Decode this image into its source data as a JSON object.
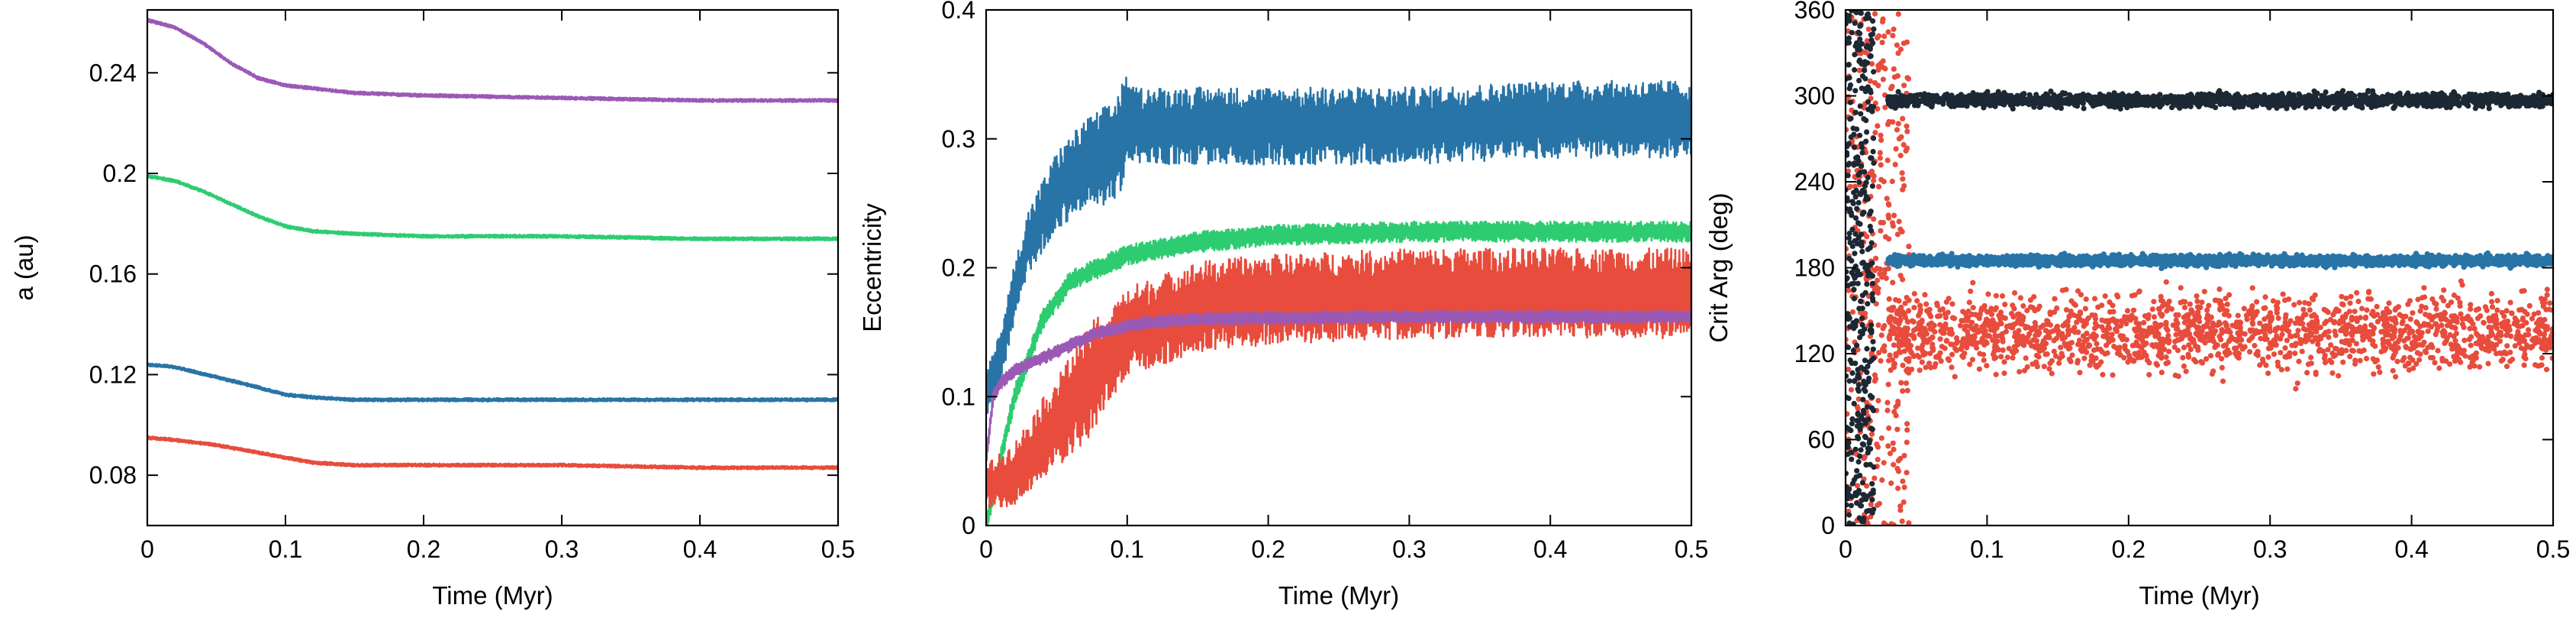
{
  "chart_data": [
    {
      "type": "line",
      "xlabel": "Time (Myr)",
      "ylabel": "a (au)",
      "xlim": [
        0,
        0.5
      ],
      "ylim": [
        0.06,
        0.265
      ],
      "xticks": [
        0,
        0.1,
        0.2,
        0.3,
        0.4,
        0.5
      ],
      "xtick_labels": [
        "0",
        "0.1",
        "0.2",
        "0.3",
        "0.4",
        "0.5"
      ],
      "yticks": [
        0.08,
        0.12,
        0.16,
        0.2,
        0.24
      ],
      "ytick_labels": [
        "0.08",
        "0.12",
        "0.16",
        "0.2",
        "0.24"
      ],
      "grid": false,
      "series": [
        {
          "color": "#9b59b6",
          "x": [
            0,
            0.02,
            0.04,
            0.06,
            0.08,
            0.1,
            0.15,
            0.2,
            0.3,
            0.4,
            0.5
          ],
          "values": [
            0.261,
            0.258,
            0.252,
            0.244,
            0.238,
            0.235,
            0.232,
            0.231,
            0.23,
            0.229,
            0.229
          ],
          "noise": 0.0007
        },
        {
          "color": "#2ecc71",
          "x": [
            0,
            0.02,
            0.04,
            0.06,
            0.08,
            0.1,
            0.12,
            0.15,
            0.2,
            0.3,
            0.4,
            0.5
          ],
          "values": [
            0.199,
            0.197,
            0.193,
            0.188,
            0.183,
            0.179,
            0.177,
            0.176,
            0.175,
            0.175,
            0.174,
            0.174
          ],
          "noise": 0.0007
        },
        {
          "color": "#2874a6",
          "x": [
            0,
            0.02,
            0.05,
            0.08,
            0.1,
            0.12,
            0.15,
            0.2,
            0.3,
            0.4,
            0.5
          ],
          "values": [
            0.124,
            0.123,
            0.119,
            0.115,
            0.112,
            0.111,
            0.11,
            0.11,
            0.11,
            0.11,
            0.11
          ],
          "noise": 0.0007
        },
        {
          "color": "#e74c3c",
          "x": [
            0,
            0.02,
            0.05,
            0.08,
            0.1,
            0.12,
            0.15,
            0.2,
            0.3,
            0.4,
            0.5
          ],
          "values": [
            0.095,
            0.094,
            0.092,
            0.089,
            0.087,
            0.085,
            0.084,
            0.084,
            0.084,
            0.083,
            0.083
          ],
          "noise": 0.0007
        }
      ]
    },
    {
      "type": "line",
      "xlabel": "Time (Myr)",
      "ylabel": "Eccentricity",
      "xlim": [
        0,
        0.5
      ],
      "ylim": [
        0,
        0.4
      ],
      "xticks": [
        0,
        0.1,
        0.2,
        0.3,
        0.4,
        0.5
      ],
      "xtick_labels": [
        "0",
        "0.1",
        "0.2",
        "0.3",
        "0.4",
        "0.5"
      ],
      "yticks": [
        0,
        0.1,
        0.2,
        0.3,
        0.4
      ],
      "ytick_labels": [
        "0",
        "0.1",
        "0.2",
        "0.3",
        "0.4"
      ],
      "grid": false,
      "series": [
        {
          "color": "#2874a6",
          "x": [
            0,
            0.01,
            0.02,
            0.03,
            0.05,
            0.07,
            0.09,
            0.1,
            0.12,
            0.15,
            0.2,
            0.3,
            0.4,
            0.5
          ],
          "values": [
            0.1,
            0.13,
            0.18,
            0.22,
            0.26,
            0.28,
            0.29,
            0.31,
            0.31,
            0.31,
            0.31,
            0.31,
            0.315,
            0.315
          ],
          "noise": 0.03
        },
        {
          "color": "#2ecc71",
          "x": [
            0,
            0.01,
            0.02,
            0.04,
            0.06,
            0.08,
            0.1,
            0.15,
            0.2,
            0.3,
            0.4,
            0.5
          ],
          "values": [
            0,
            0.05,
            0.1,
            0.16,
            0.19,
            0.2,
            0.21,
            0.22,
            0.225,
            0.228,
            0.228,
            0.228
          ],
          "noise": 0.008
        },
        {
          "color": "#e74c3c",
          "x": [
            0,
            0.02,
            0.05,
            0.08,
            0.1,
            0.15,
            0.2,
            0.3,
            0.4,
            0.5
          ],
          "values": [
            0.03,
            0.04,
            0.08,
            0.12,
            0.15,
            0.17,
            0.175,
            0.18,
            0.18,
            0.18
          ],
          "noise": 0.035
        },
        {
          "color": "#9b59b6",
          "x": [
            0,
            0.005,
            0.01,
            0.02,
            0.04,
            0.06,
            0.08,
            0.1,
            0.12,
            0.15,
            0.2,
            0.3,
            0.4,
            0.5
          ],
          "values": [
            0.05,
            0.1,
            0.11,
            0.12,
            0.13,
            0.14,
            0.15,
            0.155,
            0.158,
            0.16,
            0.161,
            0.162,
            0.162,
            0.162
          ],
          "noise": 0.005
        }
      ]
    },
    {
      "type": "scatter",
      "xlabel": "Time (Myr)",
      "ylabel": "Crit Arg (deg)",
      "xlim": [
        0,
        0.5
      ],
      "ylim": [
        0,
        360
      ],
      "xticks": [
        0,
        0.1,
        0.2,
        0.3,
        0.4,
        0.5
      ],
      "xtick_labels": [
        "0",
        "0.1",
        "0.2",
        "0.3",
        "0.4",
        "0.5"
      ],
      "yticks": [
        0,
        60,
        120,
        180,
        240,
        300,
        360
      ],
      "ytick_labels": [
        "0",
        "60",
        "120",
        "180",
        "240",
        "300",
        "360"
      ],
      "grid": false,
      "series": [
        {
          "color": "#e74c3c",
          "center": 135,
          "spread": 45,
          "early_scatter": true
        },
        {
          "color": "#2874a6",
          "center": 185,
          "spread": 6
        },
        {
          "color": "#1c2833",
          "center": 297,
          "spread": 8,
          "early_scatter": true
        }
      ]
    }
  ]
}
